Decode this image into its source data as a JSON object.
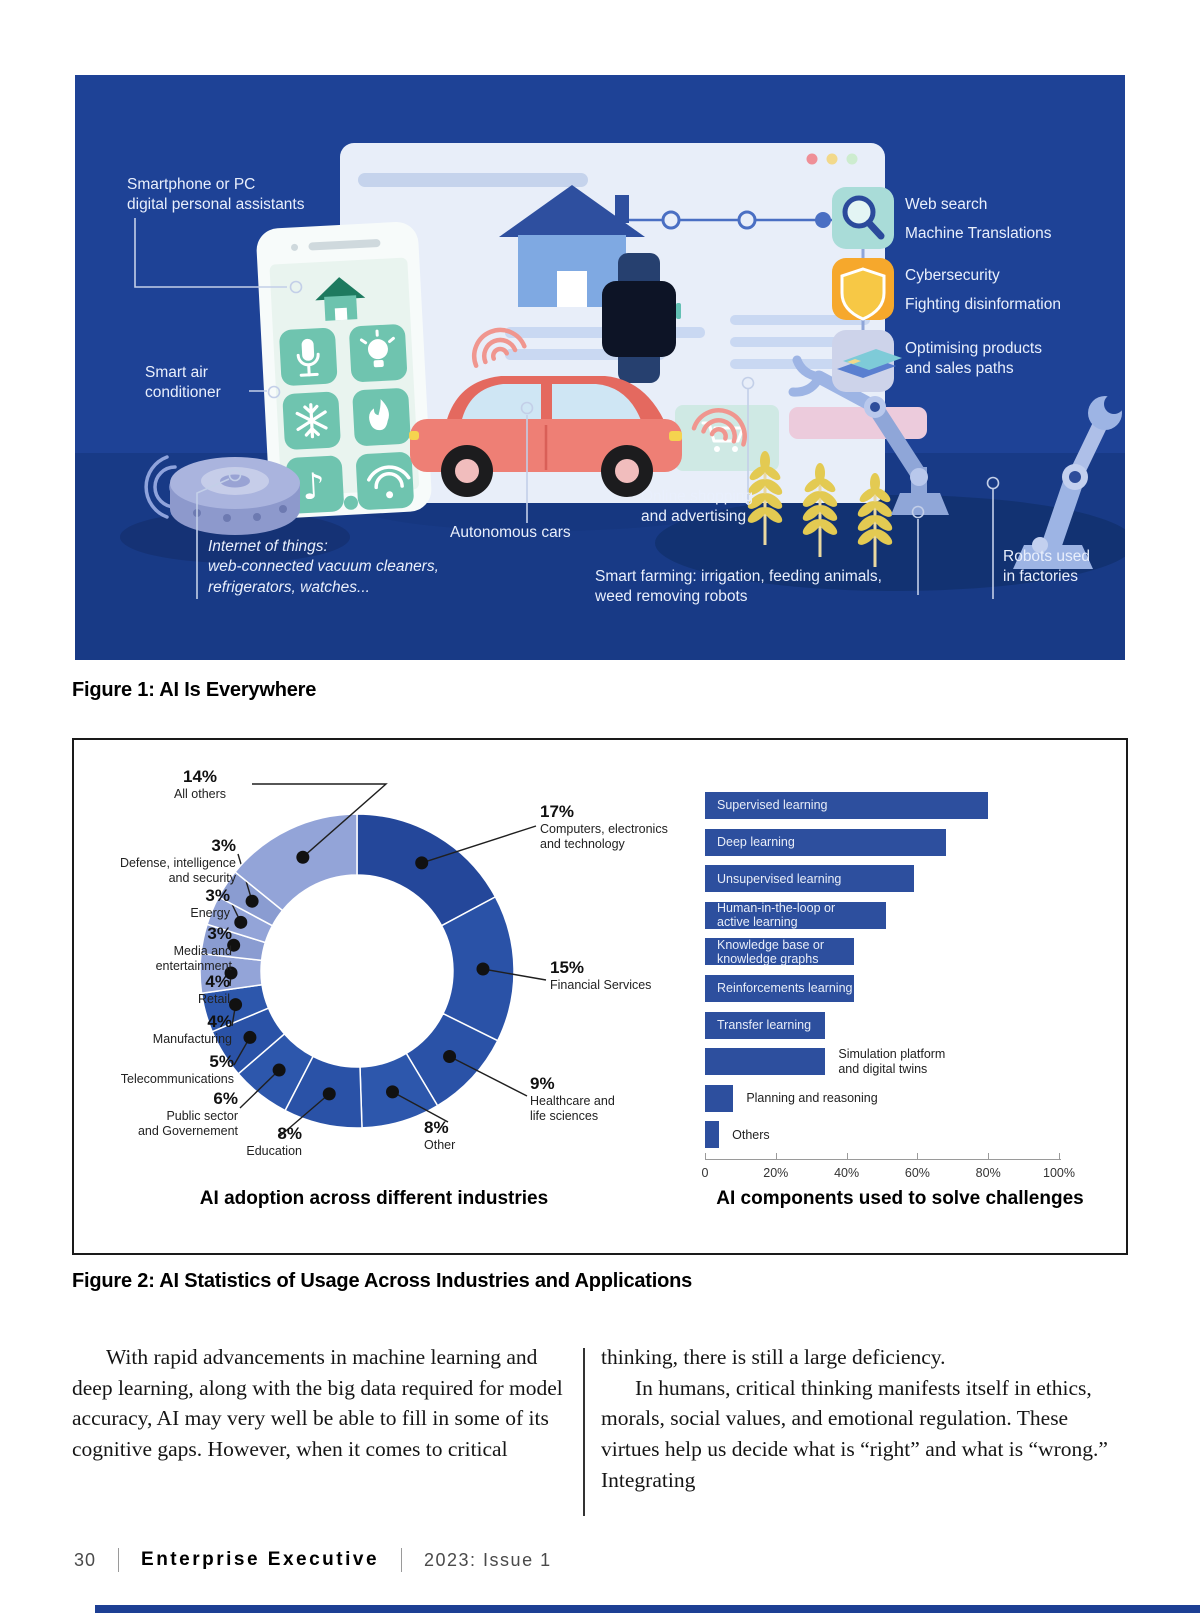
{
  "figure1": {
    "caption": "Figure 1: AI Is Everywhere",
    "labels": {
      "smartphone": "Smartphone or PC\ndigital personal assistants",
      "smart_air": "Smart air\nconditioner",
      "iot": "Internet of things:\nweb-connected vacuum cleaners,\nrefrigerators, watches...",
      "autonomous": "Autonomous cars",
      "online_shopping": "Online shopping\nand advertising",
      "smart_farming": "Smart farming: irrigation, feeding animals,\nweed removing robots",
      "robots": "Robots used\nin factories",
      "web_search": "Web search",
      "machine_translations": "Machine Translations",
      "cybersecurity": "Cybersecurity",
      "disinformation": "Fighting disinformation",
      "optimising": "Optimising products\nand sales paths"
    },
    "icons": [
      "magnifier-icon",
      "shield-icon",
      "credit-card-icon",
      "house-icon",
      "smartwatch-icon",
      "cart-icon",
      "mic-icon",
      "bulb-icon",
      "snowflake-icon",
      "flame-icon",
      "music-icon",
      "wifi-icon"
    ],
    "colors": {
      "background": "#1e4296",
      "background_bottom": "#183a86"
    }
  },
  "figure2": {
    "caption": "Figure 2: AI Statistics of Usage Across Industries and Applications"
  },
  "chart_data": [
    {
      "type": "pie",
      "donut": true,
      "title": "AI adoption across different industries",
      "segments": [
        {
          "label": "Computers, electronics\nand technology",
          "value": 17,
          "color": "#24479a"
        },
        {
          "label": "Financial Services",
          "value": 15,
          "color": "#2a52a7"
        },
        {
          "label": "Healthcare and\nlife sciences",
          "value": 9,
          "color": "#2a52a7"
        },
        {
          "label": "Other",
          "value": 8,
          "color": "#2d57ac"
        },
        {
          "label": "Education",
          "value": 8,
          "color": "#2a52a7"
        },
        {
          "label": "Public sector\nand Governement",
          "value": 6,
          "color": "#2d57ac"
        },
        {
          "label": "Telecommunications",
          "value": 5,
          "color": "#2a52a7"
        },
        {
          "label": "Manufacturing",
          "value": 4,
          "color": "#2d57ac"
        },
        {
          "label": "Retail",
          "value": 4,
          "color": "#93a4d8"
        },
        {
          "label": "Media and\nentertainment",
          "value": 3,
          "color": "#8a9cd1"
        },
        {
          "label": "Energy",
          "value": 3,
          "color": "#93a4d8"
        },
        {
          "label": "Defense, intelligence\nand security",
          "value": 3,
          "color": "#8a9cd1"
        },
        {
          "label": "All others",
          "value": 14,
          "color": "#93a4d8"
        }
      ]
    },
    {
      "type": "bar",
      "orientation": "horizontal",
      "title": "AI components used to solve challenges",
      "categories": [
        "Supervised learning",
        "Deep learning",
        "Unsupervised learning",
        "Human-in-the-loop or\nactive learning",
        "Knowledge base or\nknowledge graphs",
        "Reinforcements learning",
        "Transfer learning",
        "Simulation platform\nand digital twins",
        "Planning and reasoning",
        "Others"
      ],
      "values": [
        80,
        68,
        59,
        51,
        42,
        42,
        34,
        34,
        8,
        4
      ],
      "xticks": [
        "0",
        "20%",
        "40%",
        "60%",
        "80%",
        "100%"
      ],
      "xlim": [
        0,
        100
      ],
      "bar_color": "#2d4f9e"
    }
  ],
  "article": {
    "left_col": [
      "With rapid advancements in machine learning and deep learning, along with the big data required for model accuracy, AI may very well be able to fill in some of its cognitive gaps. However, when it comes to critical"
    ],
    "right_col": [
      "thinking, there is still a large deficiency.",
      "In humans, critical thinking manifests itself in ethics, morals, social values, and emotional regulation. These virtues help us decide what is “right” and what is “wrong.” Integrating"
    ]
  },
  "footer": {
    "page_number": "30",
    "magazine": "Enterprise Executive",
    "issue": "2023: Issue 1"
  }
}
